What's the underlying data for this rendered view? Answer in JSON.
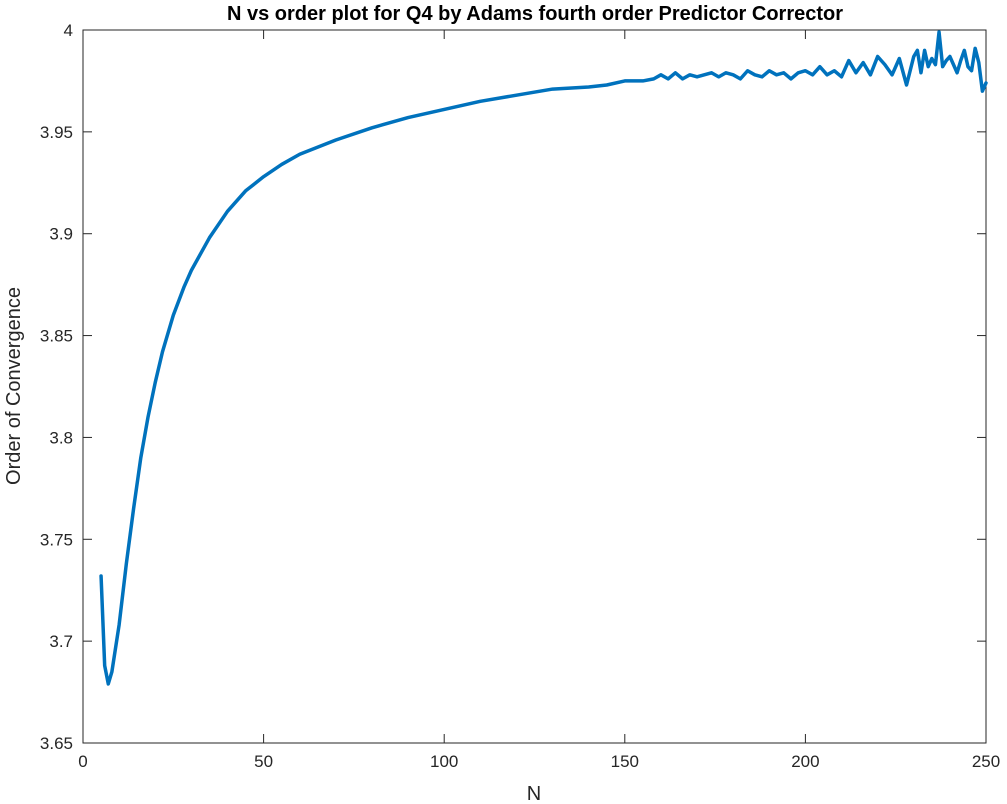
{
  "chart_data": {
    "type": "line",
    "title": "N vs order plot for Q4 by Adams fourth order Predictor Corrector",
    "xlabel": "N",
    "ylabel": "Order of Convergence",
    "xlim": [
      0,
      250
    ],
    "ylim": [
      3.65,
      4
    ],
    "xticks": [
      0,
      50,
      100,
      150,
      200,
      250
    ],
    "yticks": [
      3.65,
      3.7,
      3.75,
      3.8,
      3.85,
      3.9,
      3.95,
      4
    ],
    "xtick_labels": [
      "0",
      "50",
      "100",
      "150",
      "200",
      "250"
    ],
    "ytick_labels": [
      "3.65",
      "3.7",
      "3.75",
      "3.8",
      "3.85",
      "3.9",
      "3.95",
      "4"
    ],
    "grid": false,
    "box": true,
    "series": [
      {
        "color": "#0072BD",
        "x": [
          5,
          6,
          7,
          8,
          10,
          12,
          14,
          16,
          18,
          20,
          22,
          25,
          28,
          30,
          35,
          40,
          45,
          50,
          55,
          60,
          70,
          80,
          90,
          100,
          110,
          120,
          130,
          140,
          145,
          150,
          155,
          158,
          160,
          162,
          164,
          166,
          168,
          170,
          172,
          174,
          176,
          178,
          180,
          182,
          184,
          186,
          188,
          190,
          192,
          194,
          196,
          198,
          200,
          202,
          204,
          206,
          208,
          210,
          212,
          214,
          216,
          218,
          220,
          222,
          224,
          226,
          228,
          230,
          231,
          232,
          233,
          234,
          235,
          236,
          237,
          238,
          239,
          240,
          241,
          242,
          243,
          244,
          245,
          246,
          247,
          248,
          249,
          250
        ],
        "y": [
          3.732,
          3.688,
          3.679,
          3.685,
          3.708,
          3.738,
          3.765,
          3.79,
          3.81,
          3.827,
          3.842,
          3.86,
          3.874,
          3.882,
          3.898,
          3.911,
          3.921,
          3.928,
          3.934,
          3.939,
          3.946,
          3.952,
          3.957,
          3.961,
          3.965,
          3.968,
          3.971,
          3.972,
          3.973,
          3.975,
          3.975,
          3.976,
          3.978,
          3.976,
          3.979,
          3.976,
          3.978,
          3.977,
          3.978,
          3.979,
          3.977,
          3.979,
          3.978,
          3.976,
          3.98,
          3.978,
          3.977,
          3.98,
          3.978,
          3.979,
          3.976,
          3.979,
          3.98,
          3.978,
          3.982,
          3.978,
          3.98,
          3.977,
          3.985,
          3.979,
          3.984,
          3.978,
          3.987,
          3.983,
          3.978,
          3.986,
          3.973,
          3.987,
          3.99,
          3.979,
          3.99,
          3.982,
          3.986,
          3.983,
          3.999,
          3.982,
          3.985,
          3.987,
          3.983,
          3.979,
          3.985,
          3.99,
          3.982,
          3.98,
          3.991,
          3.984,
          3.97,
          3.974
        ]
      }
    ]
  }
}
